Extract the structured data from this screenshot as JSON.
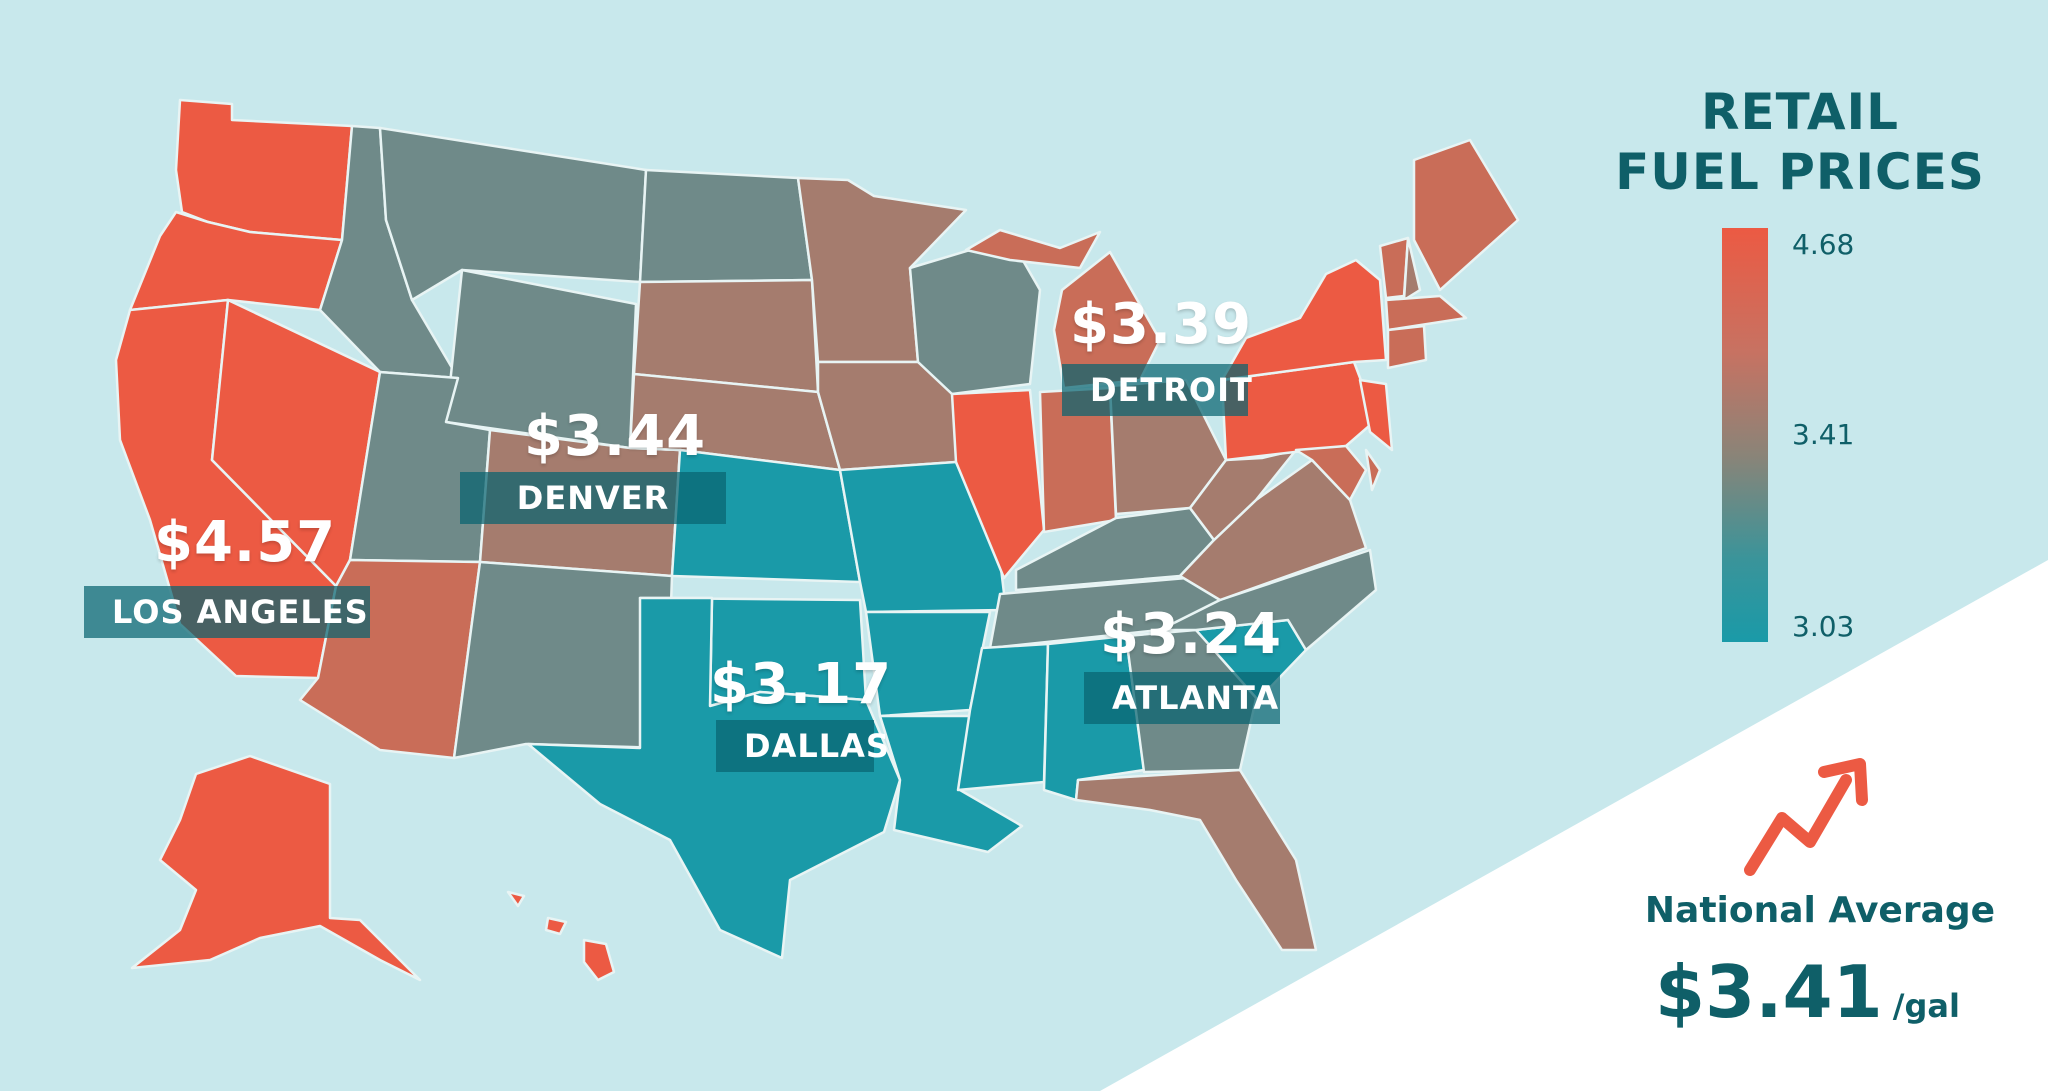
{
  "legend": {
    "title_line1": "RETAIL",
    "title_line2": "FUEL PRICES",
    "max": "4.68",
    "mid": "3.41",
    "min": "3.03",
    "color_high": "#ec5a43",
    "color_mid": "#8a8478",
    "color_low": "#1a9aa8"
  },
  "cities": [
    {
      "name": "LOS ANGELES",
      "price": "$4.57"
    },
    {
      "name": "DENVER",
      "price": "$3.44"
    },
    {
      "name": "DETROIT",
      "price": "$3.39"
    },
    {
      "name": "DALLAS",
      "price": "$3.17"
    },
    {
      "name": "ATLANTA",
      "price": "$3.24"
    }
  ],
  "national": {
    "label": "National Average",
    "value": "$3.41",
    "unit": "/gal",
    "trend_icon": "trending-up-arrow-icon"
  },
  "colors": {
    "background": "#c8e8ec",
    "white_corner": "#ffffff",
    "state_border": "#e8f4f4",
    "red": "#ec5a43",
    "rose": "#c96d58",
    "brown": "#a57c6e",
    "gray": "#6f8a89",
    "teal": "#1a9aa8",
    "text_dark": "#0f5f68"
  }
}
